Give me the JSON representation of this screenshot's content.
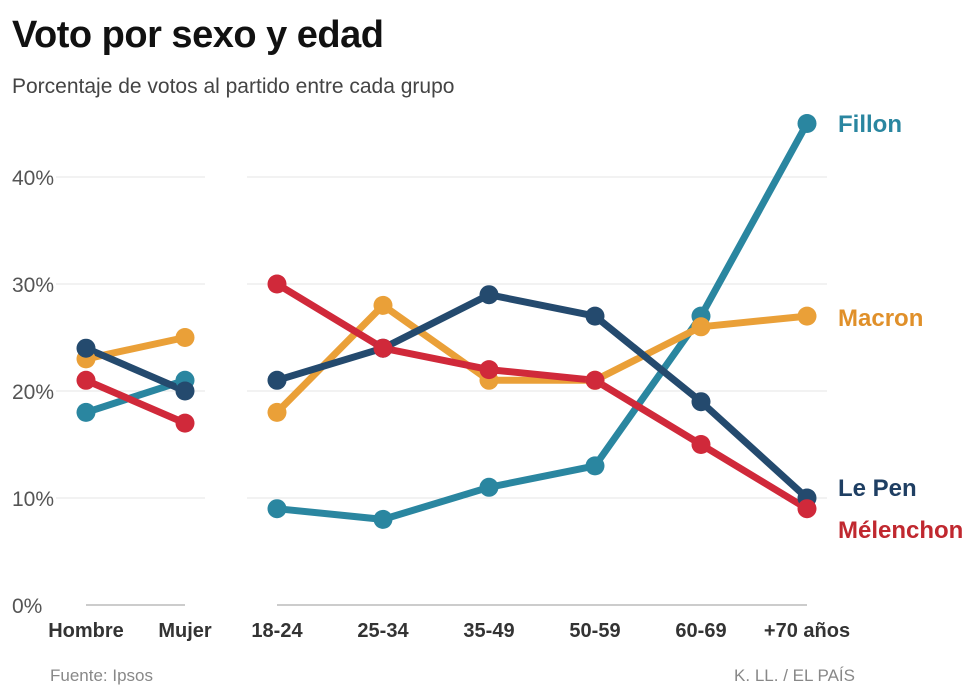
{
  "title": "Voto por sexo y edad",
  "subtitle": "Porcentaje de votos al partido entre cada grupo",
  "source": "Fuente: Ipsos",
  "credit": "K. LL. / EL PAÍS",
  "chart_data": {
    "type": "line",
    "ylim": [
      0,
      45
    ],
    "yticks": [
      0,
      10,
      20,
      30,
      40
    ],
    "ytick_labels": [
      "0%",
      "10%",
      "20%",
      "30%",
      "40%"
    ],
    "grid": true,
    "groups": [
      {
        "name": "sexo",
        "categories": [
          "Hombre",
          "Mujer"
        ]
      },
      {
        "name": "edad",
        "categories": [
          "18-24",
          "25-34",
          "35-49",
          "50-59",
          "60-69",
          "+70 años"
        ]
      }
    ],
    "series": [
      {
        "name": "Fillon",
        "color": "#2a86a0",
        "sexo": [
          18,
          21
        ],
        "edad": [
          9,
          8,
          11,
          13,
          27,
          45
        ]
      },
      {
        "name": "Macron",
        "color": "#eaa038",
        "sexo": [
          23,
          25
        ],
        "edad": [
          18,
          28,
          21,
          21,
          26,
          27
        ]
      },
      {
        "name": "Le Pen",
        "color": "#244a6e",
        "sexo": [
          24,
          20
        ],
        "edad": [
          21,
          24,
          29,
          27,
          19,
          10
        ]
      },
      {
        "name": "Mélenchon",
        "color": "#d0293a",
        "sexo": [
          21,
          17
        ],
        "edad": [
          30,
          24,
          22,
          21,
          15,
          9
        ]
      }
    ]
  }
}
